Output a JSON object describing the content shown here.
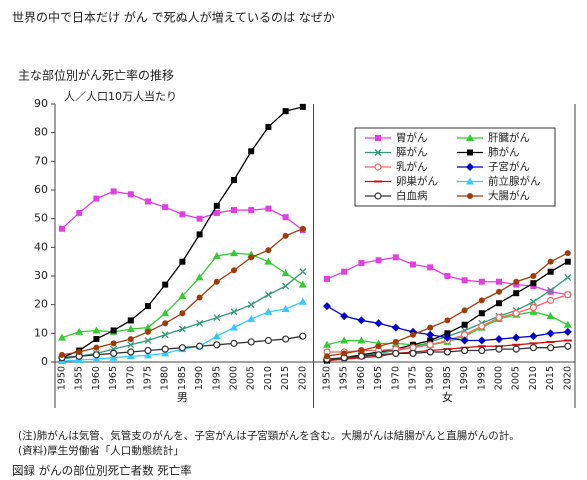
{
  "page_title": "世界の中で日本だけ がん で死ぬ人が増えているのは なぜか",
  "chart_data": {
    "type": "line",
    "title": "主な部位別がん死亡率の推移",
    "y_label": "人／人口10万人当たり",
    "groups": [
      {
        "label": "男",
        "categories": [
          "1950",
          "1955",
          "1960",
          "1965",
          "1970",
          "1975",
          "1980",
          "1985",
          "1990",
          "1995",
          "2000",
          "2005",
          "2010",
          "2015",
          "2020"
        ]
      },
      {
        "label": "女",
        "categories": [
          "1950",
          "1955",
          "1960",
          "1965",
          "1970",
          "1975",
          "1980",
          "1985",
          "1990",
          "1995",
          "2000",
          "2005",
          "2010",
          "2015",
          "2020"
        ]
      }
    ],
    "ylim": [
      0,
      90
    ],
    "yticks": [
      0,
      10,
      20,
      30,
      40,
      50,
      60,
      70,
      80,
      90
    ],
    "legend": "upper right",
    "series": [
      {
        "name": "胃がん",
        "color": "#e23ee2",
        "marker": "square",
        "values": [
          [
            46.5,
            52,
            57,
            59.5,
            58.5,
            56,
            54,
            51.5,
            50,
            52,
            53,
            53,
            53.5,
            50.5,
            46
          ],
          [
            29,
            31.5,
            34.5,
            35.5,
            36.5,
            34,
            33,
            30,
            28.5,
            28,
            28,
            27,
            26.5,
            24.5,
            23.5
          ]
        ]
      },
      {
        "name": "肝臓がん",
        "color": "#33cc33",
        "marker": "triangle",
        "values": [
          [
            8.5,
            10.5,
            11,
            10.5,
            11.5,
            12,
            17,
            23,
            29.5,
            37,
            38,
            37.5,
            35,
            31,
            27
          ],
          [
            6,
            7.5,
            7.5,
            6.5,
            6.5,
            6,
            6,
            7,
            9,
            12,
            15,
            16.5,
            17.5,
            16,
            13
          ]
        ]
      },
      {
        "name": "膵がん",
        "color": "#339977",
        "marker": "x",
        "values": [
          [
            1,
            2,
            3,
            4.5,
            6,
            7.5,
            9.5,
            11.5,
            13.5,
            15.5,
            17.5,
            20,
            23.5,
            26.5,
            31.5
          ],
          [
            0.5,
            1,
            2,
            3,
            4,
            5,
            7,
            9,
            11,
            13.5,
            16,
            18,
            21,
            25,
            29.5
          ]
        ]
      },
      {
        "name": "肺がん",
        "color": "#000000",
        "marker": "square",
        "values": [
          [
            1.5,
            4,
            8,
            11,
            14.5,
            19.5,
            27,
            35,
            44.5,
            54.5,
            63.5,
            73.5,
            82,
            87.5,
            89
          ],
          [
            0.5,
            1.5,
            2.5,
            3.5,
            4.5,
            6,
            7.5,
            10,
            13,
            17,
            20.5,
            24,
            27.5,
            31.5,
            35
          ]
        ]
      },
      {
        "name": "乳がん",
        "color": "#ff6060",
        "marker": "circle-open",
        "values": [
          [
            null,
            null,
            null,
            null,
            null,
            null,
            null,
            null,
            null,
            null,
            null,
            null,
            null,
            null,
            null
          ],
          [
            3.5,
            3.5,
            4,
            4,
            4.5,
            5,
            6,
            7.5,
            9.5,
            12.5,
            15.5,
            17,
            19,
            21.5,
            23.5
          ]
        ]
      },
      {
        "name": "子宮がん",
        "color": "#0000cc",
        "marker": "diamond",
        "values": [
          [
            null,
            null,
            null,
            null,
            null,
            null,
            null,
            null,
            null,
            null,
            null,
            null,
            null,
            null,
            null
          ],
          [
            19.5,
            16,
            14.5,
            13.5,
            12,
            10.5,
            9.5,
            8.5,
            7.5,
            7.5,
            8,
            8.5,
            9,
            10,
            10.5
          ]
        ]
      },
      {
        "name": "卵巣がん",
        "color": "#d01010",
        "marker": "dash",
        "values": [
          [
            null,
            null,
            null,
            null,
            null,
            null,
            null,
            null,
            null,
            null,
            null,
            null,
            null,
            null,
            null
          ],
          [
            0.5,
            1,
            1.5,
            2,
            3,
            3.5,
            4,
            4.5,
            5,
            5.5,
            5.5,
            6,
            6.5,
            7,
            7.5
          ]
        ]
      },
      {
        "name": "前立腺がん",
        "color": "#33ccff",
        "marker": "triangle",
        "values": [
          [
            0.3,
            0.7,
            1,
            1.5,
            2,
            2.3,
            3,
            4.5,
            5.5,
            9,
            12,
            15,
            17.5,
            18.5,
            21
          ],
          [
            null,
            null,
            null,
            null,
            null,
            null,
            null,
            null,
            null,
            null,
            null,
            null,
            null,
            null,
            null
          ]
        ]
      },
      {
        "name": "白血病",
        "color": "#333333",
        "marker": "circle-open",
        "values": [
          [
            1.5,
            2,
            2.5,
            3,
            3.5,
            4,
            4.5,
            5,
            5.5,
            6,
            6.5,
            7,
            7.5,
            8,
            9
          ],
          [
            1,
            1.5,
            2,
            2.5,
            3,
            3,
            3.5,
            3.5,
            4,
            4,
            4.5,
            4.5,
            5,
            5,
            5.5
          ]
        ]
      },
      {
        "name": "大腸がん",
        "color": "#a03c0a",
        "marker": "circle",
        "values": [
          [
            2.5,
            3.5,
            5,
            6.5,
            8,
            10.5,
            13.5,
            17,
            22.5,
            28,
            32,
            36.5,
            39,
            44,
            46.5
          ],
          [
            2,
            3,
            4,
            5.5,
            7,
            9.5,
            12,
            14.5,
            18,
            21.5,
            24.5,
            28,
            30,
            35,
            38
          ]
        ]
      }
    ]
  },
  "notes": [
    "(注)肺がんは気管、気管支のがんを、子宮がんは子宮頸がんを含む。大腸がんは結腸がんと直腸がんの計。",
    "(資料)厚生労働省「人口動態統計」"
  ],
  "caption": "図録 がんの部位別死亡者数 死亡率"
}
